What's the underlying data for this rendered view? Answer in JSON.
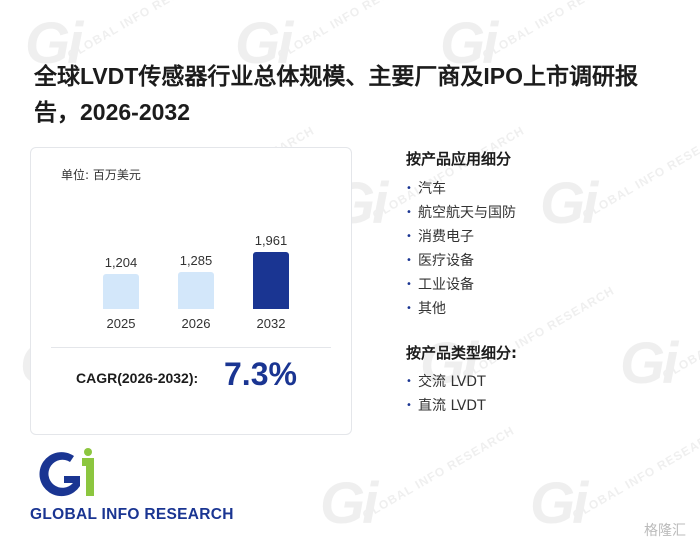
{
  "report": {
    "title": "全球LVDT传感器行业总体规模、主要厂商及IPO上市调研报告，2026-2032"
  },
  "card": {
    "unit_label": "单位: 百万美元",
    "cagr_label": "CAGR(2026-2032):",
    "cagr_value": "7.3%"
  },
  "chart_data": {
    "type": "bar",
    "categories": [
      "2025",
      "2026",
      "2032"
    ],
    "values": [
      1204,
      1285,
      1961
    ],
    "value_labels": [
      "1,204",
      "1,285",
      "1,961"
    ],
    "colors": [
      "#d3e7fa",
      "#d3e7fa",
      "#1a3592"
    ]
  },
  "application_segment": {
    "title": "按产品应用细分",
    "items": [
      "汽车",
      "航空航天与国防",
      "消费电子",
      "医疗设备",
      "工业设备",
      "其他"
    ]
  },
  "type_segment": {
    "title": "按产品类型细分:",
    "items": [
      "交流 LVDT",
      "直流 LVDT"
    ]
  },
  "brand": {
    "logo_text": "GLOBAL INFO RESEARCH",
    "watermark_text": "GLOBAL INFO RESEARCH",
    "source_mark": "格隆汇",
    "accent_color": "#1a3592",
    "logo_green": "#8cc63f"
  }
}
